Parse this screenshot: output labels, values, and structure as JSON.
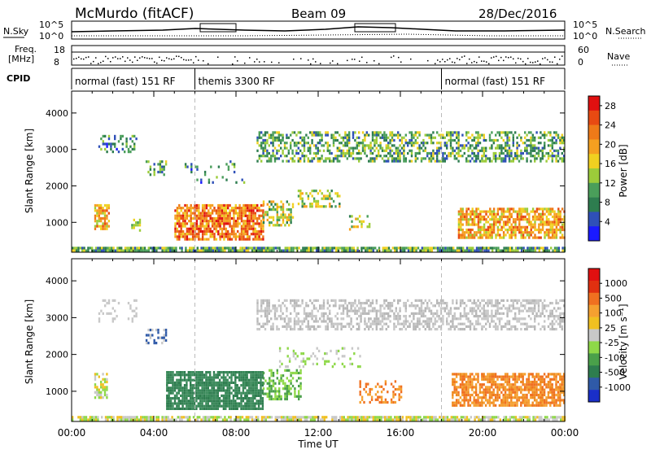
{
  "header": {
    "station": "McMurdo (fitACF)",
    "beam": "Beam 09",
    "date": "28/Dec/2016"
  },
  "strip_labels": {
    "nsky": "N.Sky",
    "nsearch": "N.Search",
    "freq_line1": "Freq.",
    "freq_line2": "[MHz]",
    "nave": "Nave",
    "cpid": "CPID"
  },
  "strip_ticks": {
    "noise_left": [
      "10^5",
      "10^0"
    ],
    "noise_right": [
      "10^5",
      "10^0"
    ],
    "freq_left": [
      "18",
      "8"
    ],
    "nave_right": [
      "60",
      "0"
    ]
  },
  "cpid_segments": [
    {
      "start_hour": 0,
      "end_hour": 6,
      "label": "normal (fast) 151 RF"
    },
    {
      "start_hour": 6,
      "end_hour": 18,
      "label": "themis 3300 RF"
    },
    {
      "start_hour": 18,
      "end_hour": 24,
      "label": "normal (fast) 151 RF"
    }
  ],
  "x_axis": {
    "label": "Time UT",
    "ticks": [
      "00:00",
      "04:00",
      "08:00",
      "12:00",
      "16:00",
      "20:00",
      "00:00"
    ],
    "range_hours": [
      0,
      24
    ]
  },
  "chart_data": [
    {
      "type": "heatmap",
      "panel": "power",
      "ylabel": "Slant Range [km]",
      "ylim": [
        180,
        4600
      ],
      "yticks": [
        1000,
        2000,
        3000,
        4000
      ],
      "colorbar_label": "Power [dB]",
      "colorbar_ticks": [
        "4",
        "8",
        "12",
        "16",
        "20",
        "24",
        "28"
      ],
      "colorbar_colors": [
        "#1a1aff",
        "#2f50b8",
        "#2e7d4f",
        "#4a9e5a",
        "#9ccc3a",
        "#f0d020",
        "#f5a020",
        "#ef7a18",
        "#e84a12",
        "#e01010"
      ],
      "regions": [
        {
          "x0": 0.0,
          "x1": 24.0,
          "y0": 190,
          "y1": 330,
          "level": 3,
          "density": 0.85
        },
        {
          "x0": 1.1,
          "x1": 1.8,
          "y0": 800,
          "y1": 1500,
          "level": 6,
          "density": 0.7
        },
        {
          "x0": 2.9,
          "x1": 3.3,
          "y0": 800,
          "y1": 1100,
          "level": 4,
          "density": 0.5
        },
        {
          "x0": 5.0,
          "x1": 9.3,
          "y0": 550,
          "y1": 1500,
          "level": 7,
          "density": 0.78
        },
        {
          "x0": 9.3,
          "x1": 10.8,
          "y0": 900,
          "y1": 1600,
          "level": 4,
          "density": 0.55
        },
        {
          "x0": 11.0,
          "x1": 13.0,
          "y0": 1400,
          "y1": 1900,
          "level": 4,
          "density": 0.45
        },
        {
          "x0": 13.5,
          "x1": 14.5,
          "y0": 800,
          "y1": 1200,
          "level": 4,
          "density": 0.35
        },
        {
          "x0": 18.8,
          "x1": 24.0,
          "y0": 550,
          "y1": 1400,
          "level": 6,
          "density": 0.72
        },
        {
          "x0": 3.6,
          "x1": 4.6,
          "y0": 2300,
          "y1": 2700,
          "level": 3,
          "density": 0.45
        },
        {
          "x0": 1.3,
          "x1": 3.2,
          "y0": 2900,
          "y1": 3400,
          "level": 2,
          "density": 0.3
        },
        {
          "x0": 9.0,
          "x1": 24.0,
          "y0": 2700,
          "y1": 3500,
          "level": 3,
          "density": 0.5
        },
        {
          "x0": 5.5,
          "x1": 8.5,
          "y0": 2100,
          "y1": 2700,
          "level": 2,
          "density": 0.15
        }
      ]
    },
    {
      "type": "heatmap",
      "panel": "velocity",
      "ylabel": "Slant Range [km]",
      "ylim": [
        180,
        4600
      ],
      "yticks": [
        1000,
        2000,
        3000,
        4000
      ],
      "colorbar_label": "Velocity [m s⁻¹]",
      "colorbar_ticks": [
        "1000",
        "500",
        "100",
        "25",
        "-25",
        "-100",
        "-500",
        "-1000"
      ],
      "colorbar_colors": [
        "#1a2fc8",
        "#2f5aa8",
        "#2e7d4f",
        "#4aa04a",
        "#8ed848",
        "#c8c8c8",
        "#f0c020",
        "#f5a030",
        "#f07020",
        "#e03010",
        "#e01010"
      ],
      "regions": [
        {
          "x0": 0.0,
          "x1": 24.0,
          "y0": 190,
          "y1": 330,
          "colors": [
            "#c8c8c8",
            "#f0c020",
            "#8ed848"
          ],
          "density": 0.8
        },
        {
          "x0": 1.1,
          "x1": 1.7,
          "y0": 800,
          "y1": 1500,
          "colors": [
            "#8ed848",
            "#f0c020",
            "#c8c8c8"
          ],
          "density": 0.55
        },
        {
          "x0": 4.6,
          "x1": 9.3,
          "y0": 500,
          "y1": 1550,
          "colors": [
            "#2e7d4f",
            "#3a8a5a"
          ],
          "density": 0.85
        },
        {
          "x0": 9.3,
          "x1": 11.2,
          "y0": 800,
          "y1": 1600,
          "colors": [
            "#8ed848",
            "#4aa04a"
          ],
          "density": 0.4
        },
        {
          "x0": 14.0,
          "x1": 16.0,
          "y0": 700,
          "y1": 1300,
          "colors": [
            "#f07020",
            "#f5a030"
          ],
          "density": 0.35
        },
        {
          "x0": 18.5,
          "x1": 24.0,
          "y0": 650,
          "y1": 1500,
          "colors": [
            "#f07020",
            "#f5a030",
            "#ef8a20"
          ],
          "density": 0.75
        },
        {
          "x0": 3.6,
          "x1": 4.6,
          "y0": 2300,
          "y1": 2700,
          "colors": [
            "#2f5aa8",
            "#c8c8c8"
          ],
          "density": 0.45
        },
        {
          "x0": 1.3,
          "x1": 3.2,
          "y0": 2900,
          "y1": 3500,
          "colors": [
            "#c8c8c8"
          ],
          "density": 0.25
        },
        {
          "x0": 9.0,
          "x1": 24.0,
          "y0": 2700,
          "y1": 3500,
          "colors": [
            "#c8c8c8",
            "#b8b8b8"
          ],
          "density": 0.5
        },
        {
          "x0": 10.0,
          "x1": 14.0,
          "y0": 1700,
          "y1": 2200,
          "colors": [
            "#c8c8c8",
            "#8ed848"
          ],
          "density": 0.2
        }
      ]
    }
  ]
}
